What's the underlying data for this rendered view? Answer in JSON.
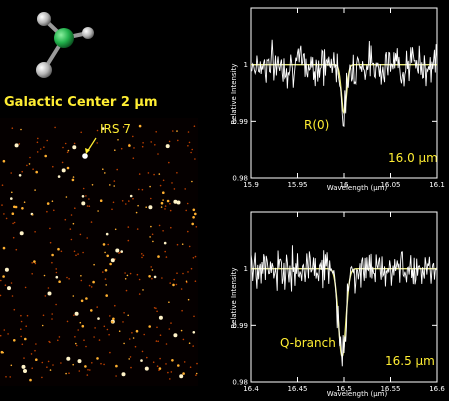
{
  "molecule": {
    "icon": "methyl-molecule-ball-and-stick",
    "center_color": "#22b14c",
    "atom_color": "#c8c8c8"
  },
  "image_panel": {
    "title": "Galactic Center 2 μm",
    "source_label": "IRS 7",
    "label_color": "#ffee33"
  },
  "colors": {
    "background": "#000000",
    "data_line": "#ffffff",
    "model_line": "#e8e87a",
    "annotation": "#ffee33"
  },
  "chart_data": [
    {
      "type": "line",
      "xlabel": "Wavelength (μm)",
      "ylabel": "Relative Intensity",
      "xlim": [
        15.9,
        16.1
      ],
      "ylim": [
        0.98,
        1.01
      ],
      "xticks": [
        "15.9",
        "15.95",
        "16",
        "16.05",
        "16.1"
      ],
      "yticks": [
        "0.98",
        "0.99",
        "1"
      ],
      "line_label": "R(0)",
      "wavelength_label": "16.0 μm",
      "line_center": 16.0,
      "line_depth": 0.0085,
      "line_width": 0.0028,
      "data_jitter": 0.0035,
      "series": [
        {
          "name": "",
          "kind": "observed"
        },
        {
          "name": "",
          "kind": "model"
        }
      ]
    },
    {
      "type": "line",
      "xlabel": "Wavelength (μm)",
      "ylabel": "Relative Intensity",
      "xlim": [
        16.4,
        16.6
      ],
      "ylim": [
        0.98,
        1.01
      ],
      "xticks": [
        "16.4",
        "16.45",
        "16.5",
        "16.55",
        "16.6"
      ],
      "yticks": [
        "0.98",
        "0.99",
        "1"
      ],
      "line_label": "Q-branch",
      "wavelength_label": "16.5 μm",
      "line_center": 16.498,
      "line_depth": 0.0155,
      "line_width": 0.004,
      "data_jitter": 0.0035,
      "series": [
        {
          "name": "",
          "kind": "observed"
        },
        {
          "name": "",
          "kind": "model"
        }
      ]
    }
  ]
}
